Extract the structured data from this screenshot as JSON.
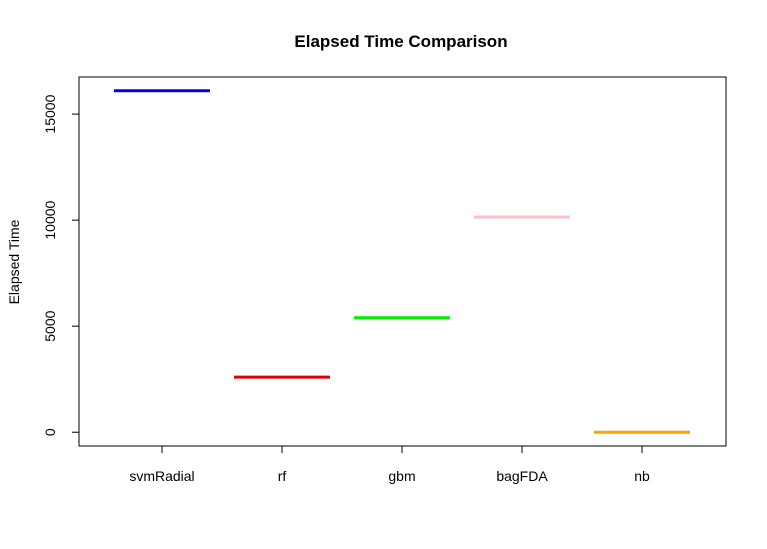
{
  "chart_data": {
    "type": "line",
    "title": "Elapsed Time Comparison",
    "xlabel": "",
    "ylabel": "Elapsed Time",
    "categories": [
      "svmRadial",
      "rf",
      "gbm",
      "bagFDA",
      "nb"
    ],
    "values": [
      16100,
      2600,
      5400,
      10150,
      0
    ],
    "colors": [
      "#0000dd",
      "#dd0000",
      "#00ee00",
      "#ffc0cb",
      "#ffa500"
    ],
    "yticks": [
      0,
      5000,
      10000,
      15000
    ],
    "ylim": [
      -650,
      16750
    ],
    "grid": false,
    "legend": "none"
  }
}
